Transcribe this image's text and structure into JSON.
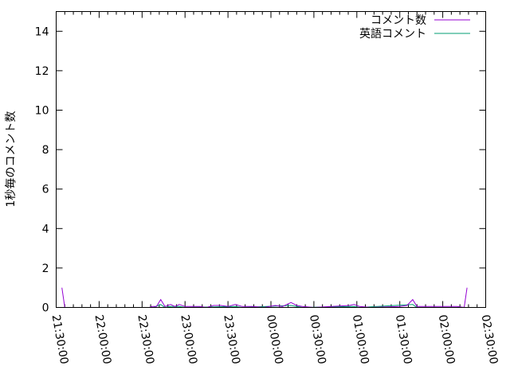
{
  "chart_data": {
    "type": "line",
    "title": "",
    "xlabel": "",
    "ylabel": "1秒毎のコメント数",
    "xlim": [
      "21:30:00",
      "02:30:00"
    ],
    "ylim": [
      0,
      15
    ],
    "xticks": [
      "21:30:00",
      "22:00:00",
      "22:30:00",
      "23:00:00",
      "23:30:00",
      "00:00:00",
      "00:30:00",
      "01:00:00",
      "01:30:00",
      "02:00:00",
      "02:30:00"
    ],
    "yticks": [
      "0",
      "2",
      "4",
      "6",
      "8",
      "10",
      "12",
      "14"
    ],
    "grid": false,
    "legend": "top-right",
    "series": [
      {
        "name": "コメント数",
        "color": "#9400d3",
        "points": [
          [
            "21:34:00",
            1.0
          ],
          [
            "21:36:00",
            0
          ],
          [
            "22:35:00",
            0
          ],
          [
            "22:37:00",
            0.05
          ],
          [
            "22:40:00",
            0.05
          ],
          [
            "22:43:00",
            0.4
          ],
          [
            "22:46:00",
            0.05
          ],
          [
            "22:50:00",
            0.15
          ],
          [
            "22:53:00",
            0.05
          ],
          [
            "22:56:00",
            0.15
          ],
          [
            "23:00:00",
            0.05
          ],
          [
            "23:05:00",
            0.05
          ],
          [
            "23:10:00",
            0.05
          ],
          [
            "23:15:00",
            0
          ],
          [
            "23:20:00",
            0.1
          ],
          [
            "23:25:00",
            0.1
          ],
          [
            "23:30:00",
            0.05
          ],
          [
            "23:35:00",
            0.15
          ],
          [
            "23:40:00",
            0.05
          ],
          [
            "23:47:00",
            0.05
          ],
          [
            "23:55:00",
            0
          ],
          [
            "00:03:00",
            0.1
          ],
          [
            "00:08:00",
            0.05
          ],
          [
            "00:14:00",
            0.25
          ],
          [
            "00:18:00",
            0.1
          ],
          [
            "00:22:00",
            0.05
          ],
          [
            "00:30:00",
            0
          ],
          [
            "00:55:00",
            0.1
          ],
          [
            "00:58:00",
            0.15
          ],
          [
            "01:02:00",
            0.05
          ],
          [
            "01:10:00",
            0
          ],
          [
            "01:30:00",
            0.05
          ],
          [
            "01:35:00",
            0.1
          ],
          [
            "01:39:00",
            0.4
          ],
          [
            "01:42:00",
            0.05
          ],
          [
            "01:50:00",
            0.05
          ],
          [
            "02:00:00",
            0.05
          ],
          [
            "02:05:00",
            0.05
          ],
          [
            "02:10:00",
            0.05
          ],
          [
            "02:15:00",
            0
          ],
          [
            "02:17:00",
            1.0
          ]
        ]
      },
      {
        "name": "英語コメント",
        "color": "#009e73",
        "points": [
          [
            "21:34:00",
            0
          ],
          [
            "22:38:00",
            0
          ],
          [
            "22:43:00",
            0.15
          ],
          [
            "22:46:00",
            0
          ],
          [
            "22:50:00",
            0.05
          ],
          [
            "22:56:00",
            0.05
          ],
          [
            "23:00:00",
            0
          ],
          [
            "23:35:00",
            0.05
          ],
          [
            "23:40:00",
            0
          ],
          [
            "00:14:00",
            0.1
          ],
          [
            "00:18:00",
            0.05
          ],
          [
            "00:22:00",
            0
          ],
          [
            "00:58:00",
            0.05
          ],
          [
            "01:02:00",
            0
          ],
          [
            "01:39:00",
            0.15
          ],
          [
            "01:42:00",
            0
          ],
          [
            "02:17:00",
            0
          ]
        ]
      }
    ]
  }
}
